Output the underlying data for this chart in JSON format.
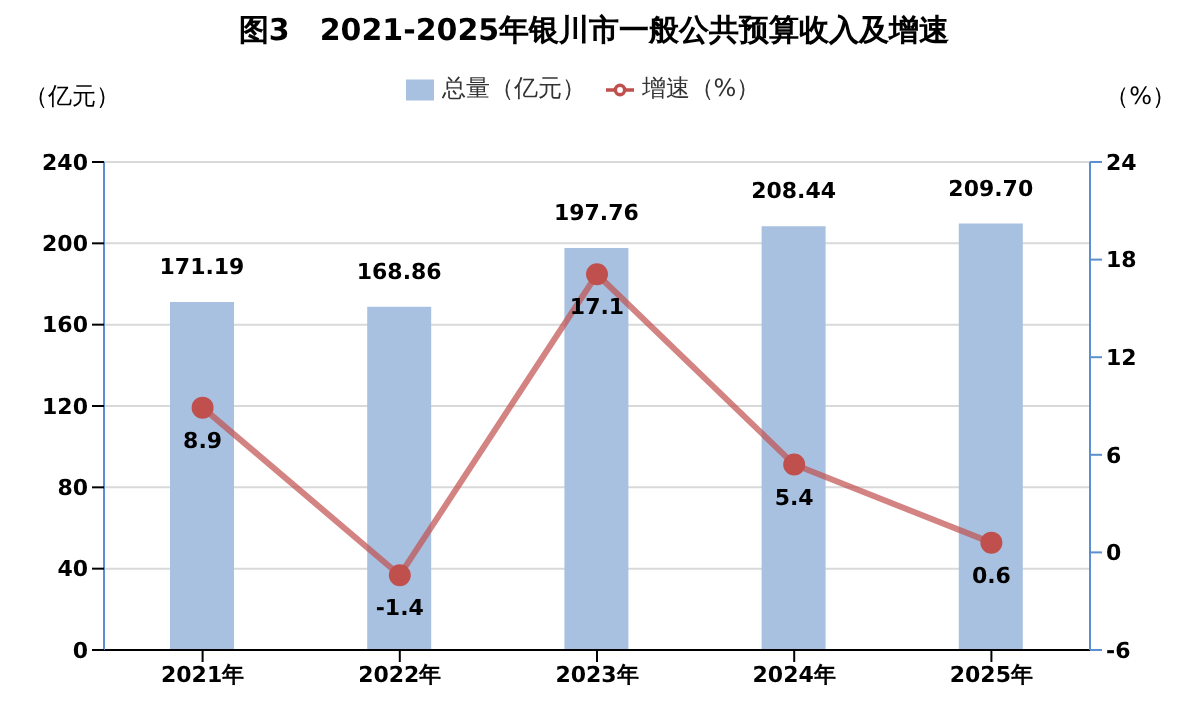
{
  "chart_data": {
    "type": "bar",
    "title": "图3　2021-2025年银川市一般公共预算收入及增速",
    "ylabel": "（亿元）",
    "y2label": "（%）",
    "categories": [
      "2021年",
      "2022年",
      "2023年",
      "2024年",
      "2025年"
    ],
    "series": [
      {
        "name": "总量（亿元）",
        "color": "#a9c1e0",
        "values": [
          171.19,
          168.86,
          197.76,
          208.44,
          209.7
        ],
        "value_labels": [
          "171.19",
          "168.86",
          "197.76",
          "208.44",
          "209.70"
        ]
      },
      {
        "name": "增速（%）",
        "type": "line",
        "axis": "y2",
        "color": "#c0504d",
        "values": [
          8.9,
          -1.4,
          17.1,
          5.4,
          0.6
        ],
        "value_labels": [
          "8.9",
          "-1.4",
          "17.1",
          "5.4",
          "0.6"
        ]
      }
    ],
    "ylim": [
      0,
      240
    ],
    "yticks": [
      0,
      40,
      80,
      120,
      160,
      200,
      240
    ],
    "y2lim": [
      -6,
      24
    ],
    "y2ticks": [
      -6,
      0,
      6,
      12,
      18,
      24
    ],
    "grid": "y",
    "legend": "top",
    "marker": "circle",
    "line_style": "solid"
  }
}
